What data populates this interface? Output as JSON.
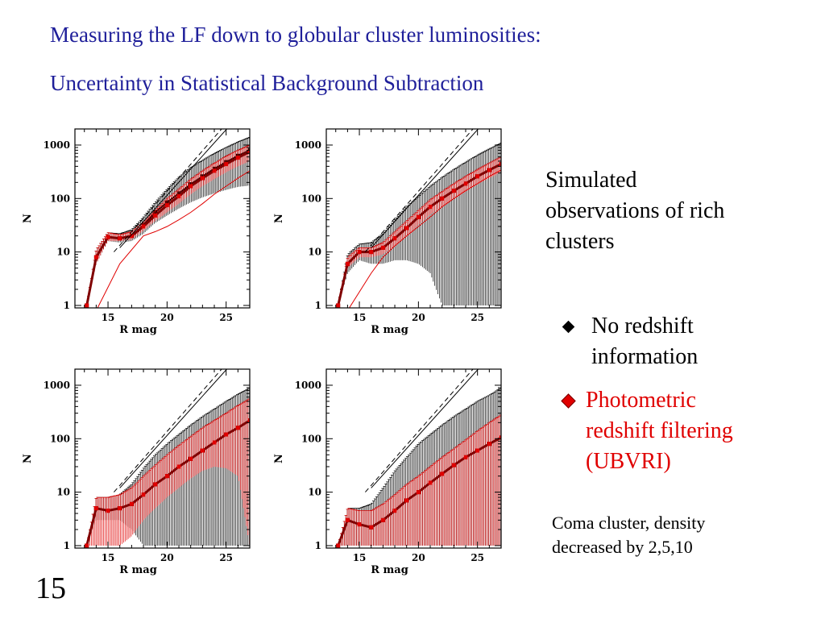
{
  "slide": {
    "title_line1": "Measuring the LF down to globular cluster luminosities:",
    "title_line2": "Uncertainty in Statistical Background Subtraction",
    "description_lines": [
      "Simulated",
      "observations of rich",
      "clusters"
    ],
    "bullets": [
      {
        "lines": [
          "No redshift",
          "information"
        ],
        "color": "#000000"
      },
      {
        "lines": [
          "Photometric",
          "redshift filtering",
          "(UBVRI)"
        ],
        "color": "#e00000"
      }
    ],
    "note_lines": [
      "Coma cluster, density",
      "decreased by 2,5,10"
    ],
    "slide_number": "15"
  },
  "colors": {
    "title": "#1f1f9a",
    "red_series": "#e00000",
    "black_series": "#000000"
  },
  "chart_data": [
    {
      "type": "line",
      "xlabel": "R mag",
      "ylabel": "N",
      "xlim": [
        12.2,
        27
      ],
      "ylim": [
        0.9,
        2000
      ],
      "yscale": "log",
      "xticks": [
        15,
        20,
        25
      ],
      "yticks": [
        1,
        10,
        100,
        1000
      ],
      "series": [
        {
          "color": "black",
          "style": "errorband",
          "x": [
            13.2,
            14,
            15,
            16,
            17,
            18,
            19,
            20,
            21,
            22,
            23,
            24,
            25,
            26,
            27
          ],
          "y": [
            1,
            8,
            19,
            18,
            20,
            32,
            55,
            85,
            125,
            185,
            260,
            360,
            480,
            630,
            800
          ],
          "low": [
            1,
            6,
            16,
            15,
            16,
            22,
            35,
            48,
            65,
            85,
            105,
            125,
            145,
            165,
            175
          ],
          "high": [
            1,
            11,
            23,
            22,
            26,
            45,
            85,
            150,
            250,
            380,
            520,
            700,
            900,
            1150,
            1400
          ]
        },
        {
          "color": "red",
          "style": "errorband",
          "x": [
            13.2,
            14,
            15,
            16,
            17,
            18,
            19,
            20,
            21,
            22,
            23,
            24,
            25,
            26,
            27
          ],
          "y": [
            1,
            8,
            19,
            18,
            20,
            30,
            48,
            75,
            110,
            170,
            240,
            330,
            440,
            580,
            750
          ],
          "low": [
            1,
            6,
            16,
            16,
            17,
            25,
            38,
            55,
            80,
            120,
            170,
            230,
            310,
            400,
            500
          ],
          "high": [
            1,
            11,
            23,
            21,
            24,
            36,
            60,
            100,
            150,
            230,
            330,
            460,
            620,
            800,
            1000
          ]
        },
        {
          "color": "black",
          "style": "dashed",
          "x": [
            15.5,
            27
          ],
          "y": [
            10,
            8000
          ]
        },
        {
          "color": "black",
          "style": "solid",
          "x": [
            16,
            27
          ],
          "y": [
            12,
            6000
          ]
        },
        {
          "color": "red",
          "style": "solid",
          "x": [
            14,
            16,
            18,
            19,
            20,
            21,
            22,
            23,
            24,
            25,
            26,
            27
          ],
          "y": [
            0.8,
            6,
            20,
            24,
            30,
            40,
            55,
            80,
            120,
            170,
            240,
            330
          ]
        }
      ]
    },
    {
      "type": "line",
      "xlabel": "R mag",
      "ylabel": "N",
      "xlim": [
        12.2,
        27
      ],
      "ylim": [
        0.9,
        2000
      ],
      "yscale": "log",
      "xticks": [
        15,
        20,
        25
      ],
      "yticks": [
        1,
        10,
        100,
        1000
      ],
      "series": [
        {
          "color": "black",
          "style": "errorband",
          "x": [
            13.2,
            14,
            15,
            16,
            17,
            18,
            19,
            20,
            21,
            22,
            23,
            24,
            25,
            26,
            27
          ],
          "y": [
            1,
            6,
            10,
            10,
            12,
            18,
            28,
            45,
            70,
            100,
            140,
            190,
            260,
            340,
            440
          ],
          "low": [
            1,
            4,
            7,
            6,
            6,
            7,
            7,
            6,
            4,
            1,
            1,
            1,
            1,
            1,
            1
          ],
          "high": [
            1,
            9,
            14,
            15,
            22,
            40,
            70,
            110,
            170,
            250,
            350,
            480,
            650,
            850,
            1100
          ]
        },
        {
          "color": "red",
          "style": "errorband",
          "x": [
            13.2,
            14,
            15,
            16,
            17,
            18,
            19,
            20,
            21,
            22,
            23,
            24,
            25,
            26,
            27
          ],
          "y": [
            1,
            6,
            10,
            10,
            12,
            18,
            28,
            45,
            70,
            100,
            140,
            190,
            260,
            340,
            440
          ],
          "low": [
            1,
            5,
            8,
            8,
            9,
            13,
            20,
            32,
            50,
            70,
            100,
            135,
            185,
            240,
            310
          ],
          "high": [
            1,
            8,
            12,
            12,
            15,
            24,
            38,
            60,
            95,
            135,
            190,
            260,
            350,
            460,
            600
          ]
        },
        {
          "color": "black",
          "style": "dashed",
          "x": [
            15.5,
            27
          ],
          "y": [
            10,
            8000
          ]
        },
        {
          "color": "black",
          "style": "solid",
          "x": [
            16,
            27
          ],
          "y": [
            12,
            6000
          ]
        },
        {
          "color": "red",
          "style": "solid",
          "x": [
            14,
            16,
            17,
            18,
            19,
            20,
            21,
            22,
            23,
            24,
            25,
            26,
            27
          ],
          "y": [
            0.8,
            4,
            8,
            13,
            20,
            30,
            45,
            70,
            100,
            140,
            190,
            260,
            340
          ]
        }
      ]
    },
    {
      "type": "line",
      "xlabel": "R mag",
      "ylabel": "N",
      "xlim": [
        12.2,
        27
      ],
      "ylim": [
        0.9,
        2000
      ],
      "yscale": "log",
      "xticks": [
        15,
        20,
        25
      ],
      "yticks": [
        1,
        10,
        100,
        1000
      ],
      "series": [
        {
          "color": "black",
          "style": "errorband",
          "x": [
            13.2,
            14,
            15,
            16,
            17,
            18,
            19,
            20,
            21,
            22,
            23,
            24,
            25,
            26,
            27
          ],
          "y": [
            1,
            5,
            4.5,
            5,
            6,
            9,
            14,
            20,
            30,
            42,
            60,
            85,
            120,
            160,
            220
          ],
          "low": [
            1,
            3,
            3,
            3,
            2,
            1,
            1,
            1,
            1,
            1,
            1,
            1,
            1,
            1,
            1
          ],
          "high": [
            1,
            8,
            8,
            9,
            14,
            28,
            50,
            80,
            120,
            180,
            260,
            360,
            500,
            680,
            900
          ]
        },
        {
          "color": "red",
          "style": "errorband",
          "x": [
            13.2,
            14,
            15,
            16,
            17,
            18,
            19,
            20,
            21,
            22,
            23,
            24,
            25,
            26,
            27
          ],
          "y": [
            1,
            5,
            4.5,
            5,
            6,
            9,
            14,
            20,
            30,
            42,
            60,
            85,
            120,
            160,
            220
          ],
          "low": [
            1,
            1,
            1,
            1,
            1.5,
            3,
            5,
            8,
            12,
            18,
            25,
            30,
            28,
            20,
            1
          ],
          "high": [
            1,
            8,
            8,
            9,
            12,
            20,
            32,
            50,
            75,
            110,
            160,
            220,
            300,
            420,
            560
          ]
        },
        {
          "color": "black",
          "style": "dashed",
          "x": [
            15.5,
            27
          ],
          "y": [
            10,
            8000
          ]
        },
        {
          "color": "black",
          "style": "solid",
          "x": [
            16,
            27
          ],
          "y": [
            12,
            6000
          ]
        }
      ]
    },
    {
      "type": "line",
      "xlabel": "R mag",
      "ylabel": "N",
      "xlim": [
        12.2,
        27
      ],
      "ylim": [
        0.9,
        2000
      ],
      "yscale": "log",
      "xticks": [
        15,
        20,
        25
      ],
      "yticks": [
        1,
        10,
        100,
        1000
      ],
      "series": [
        {
          "color": "black",
          "style": "errorband",
          "x": [
            13.2,
            14,
            15,
            16,
            17,
            18,
            19,
            20,
            21,
            22,
            23,
            24,
            25,
            26,
            27
          ],
          "y": [
            1,
            3,
            2.5,
            2.2,
            3,
            4.5,
            7,
            10,
            15,
            22,
            32,
            45,
            60,
            80,
            105
          ],
          "low": [
            1,
            1,
            1,
            1,
            1,
            1,
            1,
            1,
            1,
            1,
            1,
            1,
            1,
            1,
            1
          ],
          "high": [
            1,
            5,
            5,
            6,
            12,
            25,
            45,
            80,
            120,
            180,
            260,
            360,
            500,
            650,
            900
          ]
        },
        {
          "color": "red",
          "style": "errorband",
          "x": [
            13.2,
            14,
            15,
            16,
            17,
            18,
            19,
            20,
            21,
            22,
            23,
            24,
            25,
            26,
            27
          ],
          "y": [
            1,
            3,
            2.5,
            2.2,
            3,
            4.5,
            7,
            10,
            15,
            22,
            32,
            45,
            60,
            80,
            105
          ],
          "low": [
            1,
            1,
            1,
            1,
            1,
            1,
            1,
            1,
            1,
            1,
            1,
            1,
            1,
            1,
            1
          ],
          "high": [
            1,
            5,
            4.5,
            4.5,
            6,
            9,
            14,
            20,
            30,
            45,
            65,
            95,
            140,
            200,
            280
          ]
        },
        {
          "color": "black",
          "style": "dashed",
          "x": [
            15.5,
            27
          ],
          "y": [
            10,
            8000
          ]
        },
        {
          "color": "black",
          "style": "solid",
          "x": [
            16,
            27
          ],
          "y": [
            12,
            6000
          ]
        }
      ]
    }
  ]
}
